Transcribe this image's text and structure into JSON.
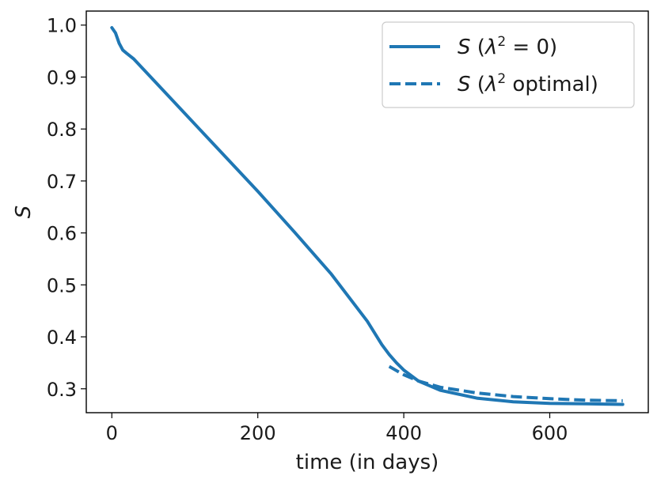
{
  "chart_data": {
    "type": "line",
    "title": "",
    "xlabel": "time (in days)",
    "ylabel": "S",
    "xlim": [
      -35,
      735
    ],
    "ylim": [
      0.254,
      1.027
    ],
    "grid": false,
    "legend_position": "top-right",
    "x_ticks": [
      {
        "value": 0,
        "label": "0"
      },
      {
        "value": 200,
        "label": "200"
      },
      {
        "value": 400,
        "label": "400"
      },
      {
        "value": 600,
        "label": "600"
      }
    ],
    "y_ticks": [
      {
        "value": 0.3,
        "label": "0.3"
      },
      {
        "value": 0.4,
        "label": "0.4"
      },
      {
        "value": 0.5,
        "label": "0.5"
      },
      {
        "value": 0.6,
        "label": "0.6"
      },
      {
        "value": 0.7,
        "label": "0.7"
      },
      {
        "value": 0.8,
        "label": "0.8"
      },
      {
        "value": 0.9,
        "label": "0.9"
      },
      {
        "value": 1.0,
        "label": "1.0"
      }
    ],
    "series": [
      {
        "name": "S (λ² = 0)",
        "style": "solid",
        "color": "#1f77b4",
        "x": [
          0,
          5,
          10,
          15,
          20,
          30,
          50,
          100,
          150,
          200,
          250,
          300,
          350,
          370,
          380,
          390,
          400,
          420,
          450,
          500,
          550,
          600,
          650,
          700
        ],
        "y": [
          0.995,
          0.985,
          0.965,
          0.952,
          0.946,
          0.935,
          0.905,
          0.83,
          0.755,
          0.68,
          0.602,
          0.522,
          0.43,
          0.385,
          0.366,
          0.35,
          0.336,
          0.315,
          0.297,
          0.282,
          0.275,
          0.272,
          0.271,
          0.27
        ]
      },
      {
        "name": "S (λ² optimal)",
        "style": "dashed",
        "color": "#1f77b4",
        "x": [
          380,
          390,
          400,
          420,
          450,
          500,
          550,
          600,
          650,
          700
        ],
        "y": [
          0.343,
          0.335,
          0.327,
          0.315,
          0.303,
          0.292,
          0.285,
          0.281,
          0.278,
          0.277
        ]
      }
    ],
    "legend": [
      {
        "label_prefix": "S (λ",
        "label_sup": "2",
        "label_suffix": " = 0)",
        "style": "solid"
      },
      {
        "label_prefix": "S (λ",
        "label_sup": "2",
        "label_suffix": " optimal)",
        "style": "dashed"
      }
    ]
  }
}
